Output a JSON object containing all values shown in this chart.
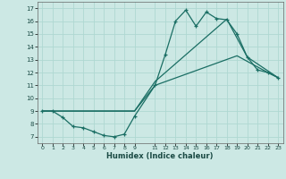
{
  "xlabel": "Humidex (Indice chaleur)",
  "background_color": "#cce8e4",
  "grid_color": "#afd8d2",
  "line_color": "#1a6e64",
  "xlim": [
    -0.5,
    23.5
  ],
  "ylim": [
    6.5,
    17.5
  ],
  "xtick_positions": [
    0,
    1,
    2,
    3,
    4,
    5,
    6,
    7,
    8,
    9,
    11,
    12,
    13,
    14,
    15,
    16,
    17,
    18,
    19,
    20,
    21,
    22,
    23
  ],
  "xtick_labels": [
    "0",
    "1",
    "2",
    "3",
    "4",
    "5",
    "6",
    "7",
    "8",
    "9",
    "11",
    "12",
    "13",
    "14",
    "15",
    "16",
    "17",
    "18",
    "19",
    "20",
    "21",
    "22",
    "23"
  ],
  "ytick_positions": [
    7,
    8,
    9,
    10,
    11,
    12,
    13,
    14,
    15,
    16,
    17
  ],
  "ytick_labels": [
    "7",
    "8",
    "9",
    "10",
    "11",
    "12",
    "13",
    "14",
    "15",
    "16",
    "17"
  ],
  "line1_x": [
    0,
    1,
    2,
    3,
    4,
    5,
    6,
    7,
    8,
    9,
    11,
    12,
    13,
    14,
    15,
    16,
    17,
    18,
    19,
    20,
    21,
    22,
    23
  ],
  "line1_y": [
    9.0,
    9.0,
    8.5,
    7.8,
    7.7,
    7.4,
    7.1,
    7.0,
    7.2,
    8.6,
    11.0,
    13.4,
    16.0,
    16.85,
    15.6,
    16.7,
    16.2,
    16.1,
    15.0,
    13.2,
    12.2,
    12.0,
    11.6
  ],
  "line2_x": [
    0,
    9,
    11,
    19,
    22,
    23
  ],
  "line2_y": [
    9.0,
    9.0,
    11.0,
    13.3,
    12.0,
    11.6
  ],
  "line3_x": [
    0,
    9,
    11,
    18,
    20,
    23
  ],
  "line3_y": [
    9.0,
    9.0,
    11.3,
    16.15,
    13.2,
    11.6
  ]
}
